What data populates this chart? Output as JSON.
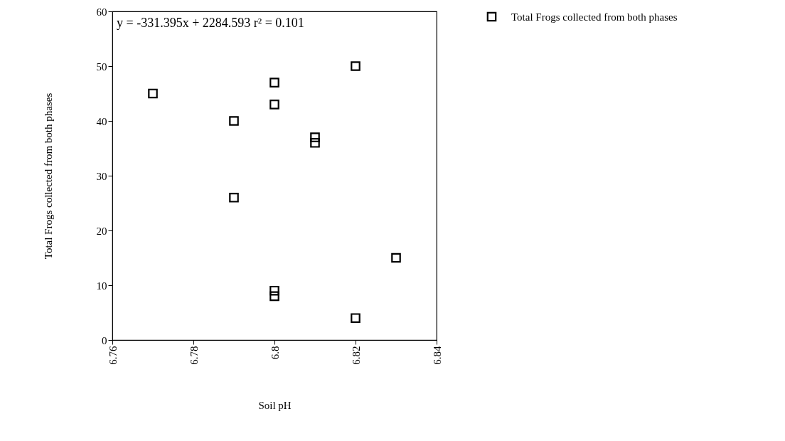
{
  "chart_data": {
    "type": "scatter",
    "xlabel": "Soil pH",
    "ylabel": "Total Frogs collected from both phases",
    "annotations": [
      "y =  -331.395x + 2284.593   r² = 0.101"
    ],
    "series": [
      {
        "name": "Total Frogs collected from both phases",
        "color": "#000000",
        "x": [
          6.77,
          6.79,
          6.79,
          6.8,
          6.8,
          6.8,
          6.8,
          6.81,
          6.81,
          6.82,
          6.82,
          6.83
        ],
        "values": [
          45,
          40,
          26,
          47,
          43,
          9,
          8,
          37,
          36,
          50,
          4,
          15
        ]
      }
    ],
    "xlim": [
      6.76,
      6.84
    ],
    "xticks": [
      6.76,
      6.78,
      6.8,
      6.82,
      6.84
    ],
    "ylim": [
      0,
      60
    ],
    "yticks": [
      0,
      10,
      20,
      30,
      40,
      50,
      60
    ],
    "grid": false,
    "legend": "right",
    "marker": "square"
  }
}
